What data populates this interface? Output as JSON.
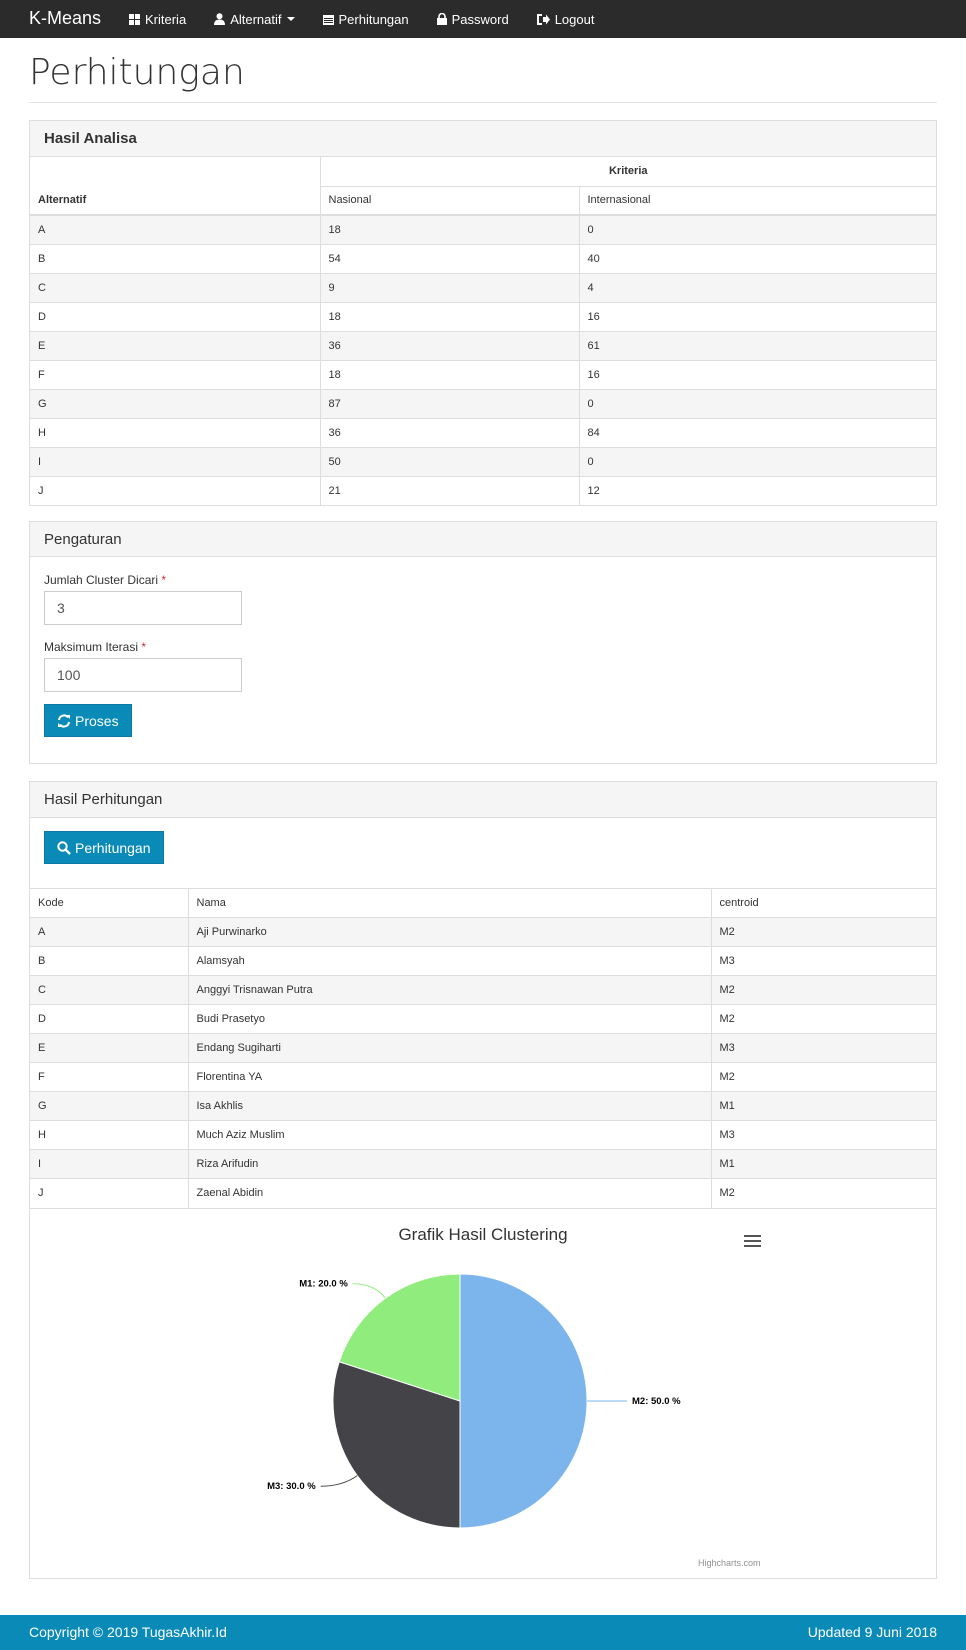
{
  "nav": {
    "brand": "K-Means",
    "items": [
      {
        "label": "Kriteria",
        "icon": "grid-icon"
      },
      {
        "label": "Alternatif",
        "icon": "user-icon"
      },
      {
        "label": "Perhitungan",
        "icon": "calendar-icon"
      },
      {
        "label": "Password",
        "icon": "lock-icon"
      },
      {
        "label": "Logout",
        "icon": "logout-icon"
      }
    ]
  },
  "page_title": "Perhitungan",
  "hasil_analisa": {
    "heading": "Hasil Analisa",
    "col_alternatif": "Alternatif",
    "col_kriteria": "Kriteria",
    "sub_cols": [
      "Nasional",
      "Internasional"
    ],
    "rows": [
      {
        "alt": "A",
        "nasional": "18",
        "internasional": "0"
      },
      {
        "alt": "B",
        "nasional": "54",
        "internasional": "40"
      },
      {
        "alt": "C",
        "nasional": "9",
        "internasional": "4"
      },
      {
        "alt": "D",
        "nasional": "18",
        "internasional": "16"
      },
      {
        "alt": "E",
        "nasional": "36",
        "internasional": "61"
      },
      {
        "alt": "F",
        "nasional": "18",
        "internasional": "16"
      },
      {
        "alt": "G",
        "nasional": "87",
        "internasional": "0"
      },
      {
        "alt": "H",
        "nasional": "36",
        "internasional": "84"
      },
      {
        "alt": "I",
        "nasional": "50",
        "internasional": "0"
      },
      {
        "alt": "J",
        "nasional": "21",
        "internasional": "12"
      }
    ]
  },
  "pengaturan": {
    "heading": "Pengaturan",
    "cluster_label": "Jumlah Cluster Dicari",
    "cluster_value": "3",
    "iterasi_label": "Maksimum Iterasi",
    "iterasi_value": "100",
    "required_mark": "*",
    "proses_button": "Proses"
  },
  "hasil_perhitungan": {
    "heading": "Hasil Perhitungan",
    "perhitungan_button": "Perhitungan",
    "headers": [
      "Kode",
      "Nama",
      "centroid"
    ],
    "rows": [
      {
        "kode": "A",
        "nama": "Aji Purwinarko",
        "centroid": "M2"
      },
      {
        "kode": "B",
        "nama": "Alamsyah",
        "centroid": "M3"
      },
      {
        "kode": "C",
        "nama": "Anggyi Trisnawan Putra",
        "centroid": "M2"
      },
      {
        "kode": "D",
        "nama": "Budi Prasetyo",
        "centroid": "M2"
      },
      {
        "kode": "E",
        "nama": "Endang Sugiharti",
        "centroid": "M3"
      },
      {
        "kode": "F",
        "nama": "Florentina YA",
        "centroid": "M2"
      },
      {
        "kode": "G",
        "nama": "Isa Akhlis",
        "centroid": "M1"
      },
      {
        "kode": "H",
        "nama": "Much Aziz Muslim",
        "centroid": "M3"
      },
      {
        "kode": "I",
        "nama": "Riza Arifudin",
        "centroid": "M1"
      },
      {
        "kode": "J",
        "nama": "Zaenal Abidin",
        "centroid": "M2"
      }
    ]
  },
  "chart_data": {
    "type": "pie",
    "title": "Grafik Hasil Clustering",
    "slices": [
      {
        "name": "M2",
        "value": 50.0,
        "label": "M2: 50.0 %",
        "color": "#7cb5ec"
      },
      {
        "name": "M3",
        "value": 30.0,
        "label": "M3: 30.0 %",
        "color": "#434348"
      },
      {
        "name": "M1",
        "value": 20.0,
        "label": "M1: 20.0 %",
        "color": "#90ed7d"
      }
    ],
    "credits": "Highcharts.com"
  },
  "footer": {
    "copyright": "Copyright © 2019 TugasAkhir.Id",
    "updated": "Updated 9 Juni 2018"
  },
  "colors": {
    "navbar": "#2b2b2b",
    "primary": "#0a8ab7"
  }
}
